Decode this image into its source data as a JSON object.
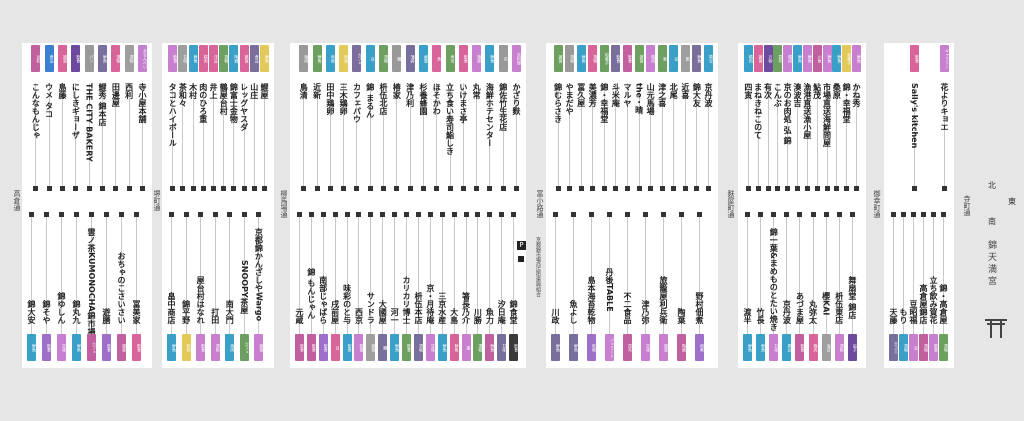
{
  "streets": [
    "高倉通",
    "堺町通",
    "柳馬場通",
    "富小路通",
    "麩屋町通",
    "御幸町通",
    "寺町通"
  ],
  "market_title": "錦天満宮",
  "compass": {
    "north": "北",
    "east": "東",
    "south": "南"
  },
  "toilet_label": "P",
  "notice": "京都錦市場商店街振興組合",
  "blocks": [
    {
      "name": "block-1",
      "shops_top": [
        {
          "name": "寺小屋本舗",
          "tag": "おせんべい",
          "color": "#c37fd0"
        },
        {
          "name": "西利",
          "tag": "漬物",
          "color": "#9e9e9e"
        },
        {
          "name": "田邊屋",
          "tag": "漬物",
          "color": "#d9649a"
        },
        {
          "name": "鯉秀 錦本店",
          "tag": "鮮魚",
          "color": "#7a6e9c"
        },
        {
          "name": "THE CITY BAKERY",
          "tag": "パン",
          "color": "#999999"
        },
        {
          "name": "にしきギョーザ",
          "tag": "飲食",
          "color": "#6d4a9e"
        },
        {
          "name": "島藤",
          "tag": "雑貨",
          "color": "#d9649a"
        },
        {
          "name": "ウメ タコ",
          "tag": "食品",
          "color": "#3a7fd0"
        },
        {
          "name": "こんなもんじゃ",
          "tag": "豆乳",
          "color": "#c0609e"
        }
      ],
      "shops_bottom": [
        {
          "name": "錦大安",
          "tag": "鮮魚",
          "color": "#3aa0c8"
        },
        {
          "name": "錦そや",
          "tag": "飲食",
          "color": "#9e6fc8"
        },
        {
          "name": "錦ゆしん",
          "tag": "甘味",
          "color": "#c87fd0"
        },
        {
          "name": "錦丸九",
          "tag": "鮮魚",
          "color": "#3aa0c8"
        },
        {
          "name": "雲ノ茶KUMONOCHA錦市場店",
          "tag": "カフェ",
          "color": "#c0609e"
        },
        {
          "name": "遊膳",
          "tag": "飲食",
          "color": "#9e6fc8"
        },
        {
          "name": "おちゃのこさいさい",
          "tag": "雑貨",
          "color": "#c0609e"
        },
        {
          "name": "冨美家",
          "tag": "飲食",
          "color": "#d9649a"
        }
      ]
    },
    {
      "name": "block-2",
      "shops_top": [
        {
          "name": "鯉屋",
          "tag": "鮮魚",
          "color": "#e3c85a"
        },
        {
          "name": "山庄",
          "tag": "食品",
          "color": "#7a6e9c"
        },
        {
          "name": "レッグヤスダ",
          "tag": "雑貨",
          "color": "#d9649a"
        },
        {
          "name": "錦富士金物",
          "tag": "陶器",
          "color": "#3aa0c8"
        },
        {
          "name": "鶴屋台村",
          "tag": "漬物",
          "color": "#6da060"
        },
        {
          "name": "井上",
          "tag": "洋品",
          "color": "#d9649a"
        },
        {
          "name": "肉のひろ重",
          "tag": "精肉",
          "color": "#d9649a"
        },
        {
          "name": "木村",
          "tag": "鮮魚",
          "color": "#3aa0c8"
        },
        {
          "name": "茶和々",
          "tag": "甘味",
          "color": "#9e9e9e"
        },
        {
          "name": "タコとハイボール",
          "tag": "飲食",
          "color": "#c87fd0"
        }
      ],
      "shops_bottom": [
        {
          "name": "畠中商店",
          "tag": "鮮魚",
          "color": "#3aa0c8"
        },
        {
          "name": "錦平野",
          "tag": "乾物",
          "color": "#e3c85a"
        },
        {
          "name": "屋台村はなれ",
          "tag": "飲食",
          "color": "#c87fd0"
        },
        {
          "name": "打田",
          "tag": "漬物",
          "color": "#c87fd0"
        },
        {
          "name": "南大門",
          "tag": "焼肉",
          "color": "#3aa0c8"
        },
        {
          "name": "SNOOPY茶屋",
          "tag": "カフェ",
          "color": "#6da060"
        },
        {
          "name": "京都錦かんざしやWargo",
          "tag": "雑貨",
          "color": "#c87fd0"
        }
      ]
    },
    {
      "name": "block-3",
      "shops_top": [
        {
          "name": "かざり麩",
          "tag": "京料理",
          "color": "#c87fd0"
        },
        {
          "name": "錦佐竹生花店",
          "tag": "花",
          "color": "#999999"
        },
        {
          "name": "海鮮ホテセンター",
          "tag": "鮮魚",
          "color": "#3aa0c8"
        },
        {
          "name": "丸常",
          "tag": "蒲鉾",
          "color": "#c87fd0"
        },
        {
          "name": "いけまさ亭",
          "tag": "飲食",
          "color": "#d9649a"
        },
        {
          "name": "立ち食い寿司鮨しき",
          "tag": "寿司",
          "color": "#6da060"
        },
        {
          "name": "ほそかわ",
          "tag": "魚",
          "color": "#d9649a"
        },
        {
          "name": "杉養蜂園",
          "tag": "蜂蜜",
          "color": "#3aa0c8"
        },
        {
          "name": "津乃利",
          "tag": "蒲鉾",
          "color": "#7a6e9c"
        },
        {
          "name": "椿家",
          "tag": "鰻",
          "color": "#999999"
        },
        {
          "name": "枡伍北店",
          "tag": "漬物",
          "color": "#6da060"
        },
        {
          "name": "錦 まるん",
          "tag": "豆",
          "color": "#3aa0c8"
        },
        {
          "name": "カフェパウ",
          "tag": "カフェ",
          "color": "#7a6e9c"
        },
        {
          "name": "三木鶏卵",
          "tag": "卵焼",
          "color": "#e3c85a"
        },
        {
          "name": "田中鶏卵",
          "tag": "卵焼",
          "color": "#3aa0c8"
        },
        {
          "name": "近新",
          "tag": "鮮魚",
          "color": "#6da060"
        },
        {
          "name": "鳥清",
          "tag": "鶏肉",
          "color": "#999999"
        }
      ],
      "shops_bottom": [
        {
          "name": "元蔵",
          "tag": "飲食",
          "color": "#c0609e"
        },
        {
          "name": "錦 もんじゃん",
          "tag": "飲食",
          "color": "#c0609e"
        },
        {
          "name": "南部じゃばら",
          "tag": "飲食",
          "color": "#9e6fc8"
        },
        {
          "name": "戌前屋",
          "tag": "豆",
          "color": "#d9649a"
        },
        {
          "name": "味彩のと与",
          "tag": "飲食",
          "color": "#3aa0c8"
        },
        {
          "name": "西京",
          "tag": "飲食",
          "color": "#c87fd0"
        },
        {
          "name": "サンドラ",
          "tag": "雑貨",
          "color": "#9e9e9e"
        },
        {
          "name": "大國屋",
          "tag": "鰻",
          "color": "#7a6e9c"
        },
        {
          "name": "河一",
          "tag": "鮮魚",
          "color": "#3aa0c8"
        },
        {
          "name": "カリカリ博士",
          "tag": "飲食",
          "color": "#6da060"
        },
        {
          "name": "枡伍本店",
          "tag": "漬物",
          "color": "#7a6e9c"
        },
        {
          "name": "京・月待庵",
          "tag": "甘味",
          "color": "#c87fd0"
        },
        {
          "name": "三京水産",
          "tag": "鮮魚",
          "color": "#3aa0c8"
        },
        {
          "name": "大島",
          "tag": "鮮魚",
          "color": "#d9649a"
        },
        {
          "name": "箸長乃介",
          "tag": "箸",
          "color": "#c87fd0"
        },
        {
          "name": "川勝",
          "tag": "漬物",
          "color": "#6da060"
        },
        {
          "name": "魚力",
          "tag": "鮮魚",
          "color": "#c0609e"
        },
        {
          "name": "汐日庵",
          "tag": "甘味",
          "color": "#7a6e9c"
        },
        {
          "name": "錦食堂",
          "tag": "飲食",
          "color": "#3a3a3a"
        }
      ]
    },
    {
      "name": "block-4",
      "shops_top": [
        {
          "name": "京丹波",
          "tag": "黒豆",
          "color": "#3aa0c8"
        },
        {
          "name": "錦大友",
          "tag": "鮮魚",
          "color": "#7a6e9c"
        },
        {
          "name": "近喜",
          "tag": "麩",
          "color": "#9e9e9e"
        },
        {
          "name": "北尾",
          "tag": "豆",
          "color": "#3aa0c8"
        },
        {
          "name": "津之喜",
          "tag": "酒",
          "color": "#6da060"
        },
        {
          "name": "山元馬場",
          "tag": "精肉",
          "color": "#c87fd0"
        },
        {
          "name": "the・晴",
          "tag": "雑貨",
          "color": "#6da060"
        },
        {
          "name": "マルヤ",
          "tag": "飲食",
          "color": "#c0609e"
        },
        {
          "name": "斗米庵",
          "tag": "飲食",
          "color": "#7a6e9c"
        },
        {
          "name": "錦・幸福堂",
          "tag": "和菓子",
          "color": "#6da060"
        },
        {
          "name": "美濃芳",
          "tag": "漬物",
          "color": "#d9649a"
        },
        {
          "name": "冨久屋",
          "tag": "鮮魚",
          "color": "#3aa0c8"
        },
        {
          "name": "やまだや",
          "tag": "漬物",
          "color": "#999999"
        },
        {
          "name": "錦むらさき",
          "tag": "雑貨",
          "color": "#6da060"
        }
      ],
      "shops_bottom": [
        {
          "name": "川政",
          "tag": "鮮魚",
          "color": "#7a6e9c"
        },
        {
          "name": "魚よし",
          "tag": "鮮魚",
          "color": "#7a6e9c"
        },
        {
          "name": "島本海苔乾物",
          "tag": "乾物",
          "color": "#9e6fc8"
        },
        {
          "name": "丹後TABLE",
          "tag": "ジェラート",
          "color": "#c87fd0"
        },
        {
          "name": "不二食品",
          "tag": "昆布",
          "color": "#c0609e"
        },
        {
          "name": "津乃弥",
          "tag": "甘味",
          "color": "#c87fd0"
        },
        {
          "name": "旅籠屋利兵衛",
          "tag": "雑貨",
          "color": "#c87fd0"
        },
        {
          "name": "陶葉",
          "tag": "陶器",
          "color": "#c0609e"
        },
        {
          "name": "野村佃煮",
          "tag": "佃煮",
          "color": "#9e6fc8"
        }
      ]
    },
    {
      "name": "block-5",
      "shops_top": [
        {
          "name": "かね秀",
          "tag": "鮮魚",
          "color": "#c87fd0"
        },
        {
          "name": "錦・幸福堂",
          "tag": "和菓子",
          "color": "#e3c85a"
        },
        {
          "name": "桑原",
          "tag": "鮮魚",
          "color": "#3aa0c8"
        },
        {
          "name": "市場直送海鮮問屋",
          "tag": "鮮魚",
          "color": "#c87fd0"
        },
        {
          "name": "鮎茂",
          "tag": "川魚",
          "color": "#c0609e"
        },
        {
          "name": "漁港直送漁小屋",
          "tag": "鮮魚",
          "color": "#c87fd0"
        },
        {
          "name": "湊波吉",
          "tag": "鮮魚",
          "color": "#3aa0c8"
        },
        {
          "name": "京のお肉処 弘 錦",
          "tag": "精肉",
          "color": "#c87fd0"
        },
        {
          "name": "こんぶ",
          "tag": "昆布",
          "color": "#6da060"
        },
        {
          "name": "有次",
          "tag": "刃物",
          "color": "#6d4a9e"
        },
        {
          "name": "まねきねこのて",
          "tag": "雑貨",
          "color": "#d9649a"
        },
        {
          "name": "四寅",
          "tag": "精肉",
          "color": "#3aa0c8"
        }
      ],
      "shops_bottom": [
        {
          "name": "渡半",
          "tag": "鮮魚",
          "color": "#3aa0c8"
        },
        {
          "name": "竹長",
          "tag": "鮮魚",
          "color": "#3aa0c8"
        },
        {
          "name": "錦一葉&まめものとたい焼き",
          "tag": "甘味",
          "color": "#c87fd0"
        },
        {
          "name": "京丹波",
          "tag": "黒豆",
          "color": "#3aa0c8"
        },
        {
          "name": "あづま屋",
          "tag": "飲食",
          "color": "#c0609e"
        },
        {
          "name": "丸弥太",
          "tag": "鶏肉",
          "color": "#d9649a"
        },
        {
          "name": "櫻KAI",
          "tag": "海苔",
          "color": "#9e9e9e"
        },
        {
          "name": "枡伍東店",
          "tag": "漬物",
          "color": "#c87fd0"
        },
        {
          "name": "舞扇堂 錦店",
          "tag": "扇子",
          "color": "#6d4a9e"
        }
      ]
    },
    {
      "name": "block-6",
      "shops_top": [
        {
          "name": "花よりキョエ",
          "tag": "ギャラリー",
          "color": "#c87fd0"
        },
        {
          "name": "Sally's kitchen",
          "tag": "飲食",
          "color": "#d9649a"
        }
      ],
      "shops_bottom": [
        {
          "name": "天藤",
          "tag": "天ぷら",
          "color": "#7a6e9c"
        },
        {
          "name": "もり",
          "tag": "漬物",
          "color": "#3aa0c8"
        },
        {
          "name": "豆昭福",
          "tag": "豆",
          "color": "#c87fd0"
        },
        {
          "name": "高倉屋錦店",
          "tag": "漬物",
          "color": "#c0609e"
        },
        {
          "name": "立ち飲み賀花",
          "tag": "飲食",
          "color": "#c87fd0"
        },
        {
          "name": "錦・高倉屋",
          "tag": "漬物",
          "color": "#6da060"
        }
      ]
    }
  ]
}
